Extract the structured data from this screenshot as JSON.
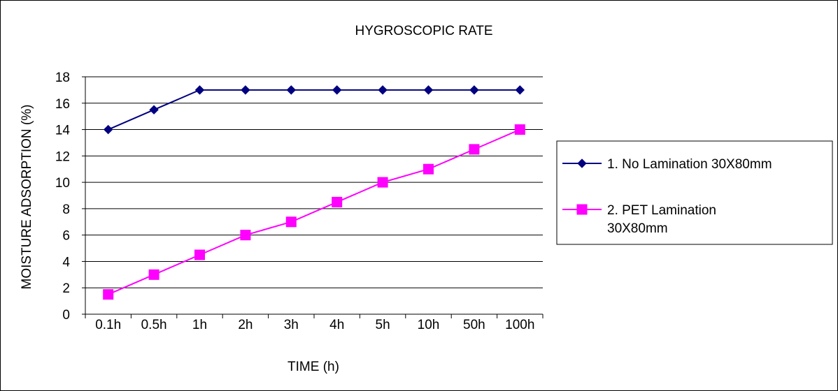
{
  "chart_data": {
    "type": "line",
    "title": "HYGROSCOPIC RATE",
    "xlabel": "TIME (h)",
    "ylabel": "MOISTURE ADSORPTION (%)",
    "categories": [
      "0.1h",
      "0.5h",
      "1h",
      "2h",
      "3h",
      "4h",
      "5h",
      "10h",
      "50h",
      "100h"
    ],
    "ylim": [
      0,
      18
    ],
    "yticks": [
      0,
      2,
      4,
      6,
      8,
      10,
      12,
      14,
      16,
      18
    ],
    "grid": "horizontal",
    "legend_position": "right",
    "series": [
      {
        "name": "1. No Lamination 30X80mm",
        "legend_lines": [
          "1. No Lamination 30X80mm"
        ],
        "color": "#000080",
        "marker": "diamond",
        "values": [
          14,
          15.5,
          17,
          17,
          17,
          17,
          17,
          17,
          17,
          17
        ]
      },
      {
        "name": "2. PET Lamination 30X80mm",
        "legend_lines": [
          "2. PET Lamination",
          "30X80mm"
        ],
        "color": "#ff00ff",
        "marker": "square",
        "values": [
          1.5,
          3,
          4.5,
          6,
          7,
          8.5,
          10,
          11,
          12.5,
          14
        ]
      }
    ]
  }
}
